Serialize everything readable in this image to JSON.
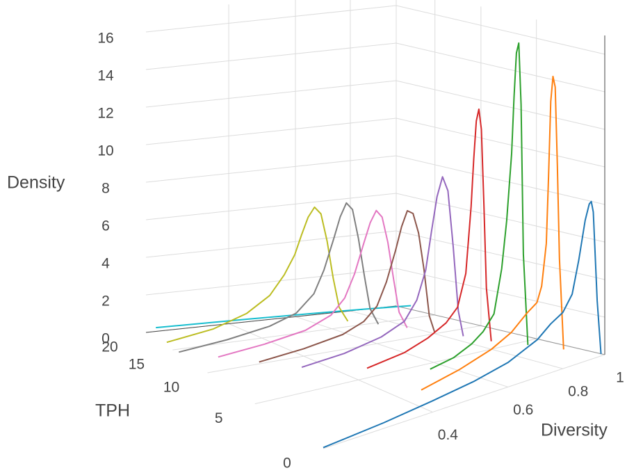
{
  "chart_data": {
    "type": "line3d",
    "x_label": "Diversity",
    "y_label": "TPH",
    "z_label": "Density",
    "xlim": [
      0.2,
      1
    ],
    "ylim": [
      0,
      20
    ],
    "zlim": [
      0,
      17
    ],
    "xticks": [
      0.4,
      0.6,
      0.8,
      1
    ],
    "yticks": [
      0,
      5,
      10,
      15,
      20
    ],
    "zticks": [
      0,
      2,
      4,
      6,
      8,
      10,
      12,
      14,
      16
    ],
    "grid": true,
    "series": [
      {
        "color": "#1f77b4",
        "tph": 0,
        "x": [
          0.2,
          0.3,
          0.4,
          0.5,
          0.6,
          0.7,
          0.75,
          0.8,
          0.84,
          0.87,
          0.9,
          0.92,
          0.93,
          0.94,
          0.96,
          0.98
        ],
        "values": [
          0.05,
          0.3,
          0.6,
          0.9,
          1.3,
          2.0,
          2.6,
          3.0,
          3.8,
          5.5,
          7.5,
          8.3,
          8.4,
          7.8,
          3.0,
          0.1
        ]
      },
      {
        "color": "#ff7f0e",
        "tph": 2,
        "x": [
          0.45,
          0.55,
          0.65,
          0.72,
          0.78,
          0.82,
          0.84,
          0.86,
          0.87,
          0.88,
          0.89,
          0.9,
          0.91,
          0.92,
          0.94
        ],
        "values": [
          0.1,
          0.6,
          1.2,
          1.8,
          2.6,
          3.0,
          3.8,
          6.0,
          9.5,
          13.5,
          14.8,
          14.2,
          10.0,
          5.0,
          0.1
        ]
      },
      {
        "color": "#2ca02c",
        "tph": 4,
        "x": [
          0.55,
          0.62,
          0.68,
          0.72,
          0.76,
          0.79,
          0.81,
          0.83,
          0.84,
          0.85,
          0.86,
          0.87,
          0.88,
          0.9
        ],
        "values": [
          0.1,
          0.4,
          0.9,
          1.4,
          2.2,
          4.5,
          7.0,
          10.5,
          13.5,
          15.8,
          16.3,
          13.0,
          5.0,
          0.1
        ]
      },
      {
        "color": "#d62728",
        "tph": 6,
        "x": [
          0.45,
          0.55,
          0.62,
          0.68,
          0.72,
          0.75,
          0.77,
          0.78,
          0.79,
          0.8,
          0.81,
          0.82,
          0.83,
          0.85
        ],
        "values": [
          0.1,
          0.5,
          1.0,
          1.6,
          2.3,
          4.0,
          7.5,
          10.0,
          12.0,
          12.6,
          11.5,
          7.5,
          3.0,
          0.1
        ]
      },
      {
        "color": "#9467bd",
        "tph": 8,
        "x": [
          0.35,
          0.45,
          0.55,
          0.62,
          0.66,
          0.69,
          0.71,
          0.73,
          0.75,
          0.77,
          0.79,
          0.81,
          0.83
        ],
        "values": [
          0.1,
          0.4,
          0.9,
          1.5,
          2.5,
          4.0,
          6.0,
          7.8,
          8.8,
          8.0,
          5.0,
          1.5,
          0.1
        ]
      },
      {
        "color": "#8c564b",
        "tph": 10,
        "x": [
          0.3,
          0.4,
          0.5,
          0.56,
          0.6,
          0.63,
          0.66,
          0.68,
          0.7,
          0.72,
          0.74,
          0.76,
          0.78,
          0.8
        ],
        "values": [
          0.1,
          0.4,
          0.8,
          1.3,
          2.0,
          3.2,
          4.8,
          6.0,
          6.8,
          6.6,
          5.5,
          3.5,
          1.0,
          0.1
        ]
      },
      {
        "color": "#e377c2",
        "tph": 12,
        "x": [
          0.25,
          0.35,
          0.45,
          0.52,
          0.56,
          0.59,
          0.62,
          0.64,
          0.66,
          0.68,
          0.7,
          0.72,
          0.74,
          0.77
        ],
        "values": [
          0.1,
          0.4,
          0.8,
          1.4,
          2.2,
          3.4,
          5.0,
          6.0,
          6.6,
          6.2,
          4.8,
          2.8,
          1.0,
          0.1
        ]
      },
      {
        "color": "#7f7f7f",
        "tph": 14,
        "x": [
          0.2,
          0.3,
          0.4,
          0.47,
          0.52,
          0.55,
          0.58,
          0.6,
          0.62,
          0.64,
          0.66,
          0.68,
          0.7,
          0.73
        ],
        "values": [
          0.1,
          0.4,
          0.8,
          1.3,
          2.2,
          3.4,
          5.0,
          6.1,
          6.8,
          6.4,
          4.8,
          2.8,
          1.0,
          0.1
        ]
      },
      {
        "color": "#bcbd22",
        "tph": 16,
        "x": [
          0.2,
          0.3,
          0.38,
          0.44,
          0.48,
          0.51,
          0.53,
          0.55,
          0.57,
          0.59,
          0.61,
          0.63,
          0.65,
          0.68
        ],
        "values": [
          0.2,
          0.6,
          1.2,
          2.0,
          3.0,
          4.0,
          5.0,
          5.9,
          6.4,
          6.0,
          4.5,
          2.5,
          0.9,
          0.1
        ]
      },
      {
        "color": "#17becf",
        "tph": 18,
        "x": [
          0.2,
          0.4,
          0.6,
          0.8,
          1.0
        ],
        "values": [
          0.6,
          0.5,
          0.4,
          0.3,
          0.2
        ]
      }
    ]
  }
}
